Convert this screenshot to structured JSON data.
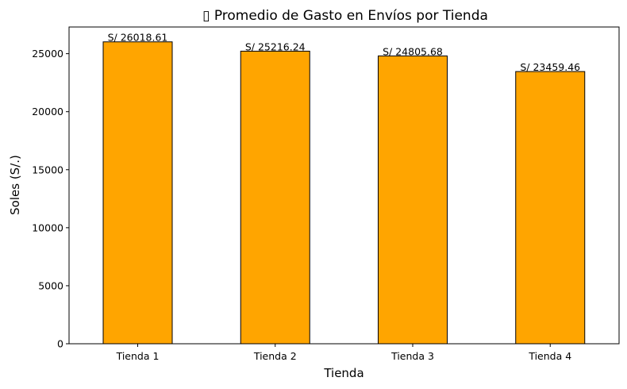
{
  "chart_data": {
    "type": "bar",
    "title": "▯ Promedio de Gasto en Envíos por Tienda",
    "xlabel": "Tienda",
    "ylabel": "Soles (S/.)",
    "categories": [
      "Tienda 1",
      "Tienda 2",
      "Tienda 3",
      "Tienda 4"
    ],
    "values": [
      26018.61,
      25216.24,
      24805.68,
      23459.46
    ],
    "data_labels": [
      "S/ 26018.61",
      "S/ 25216.24",
      "S/ 24805.68",
      "S/ 23459.46"
    ],
    "ylim": [
      0,
      27300
    ],
    "yticks": [
      0,
      5000,
      10000,
      15000,
      20000,
      25000
    ],
    "ytick_labels": [
      "0",
      "5000",
      "10000",
      "15000",
      "20000",
      "25000"
    ],
    "grid": false,
    "legend": "none",
    "colors": {
      "bar": "#FFA500",
      "edge": "#000000",
      "axes": "#000000",
      "background": "#ffffff"
    }
  }
}
